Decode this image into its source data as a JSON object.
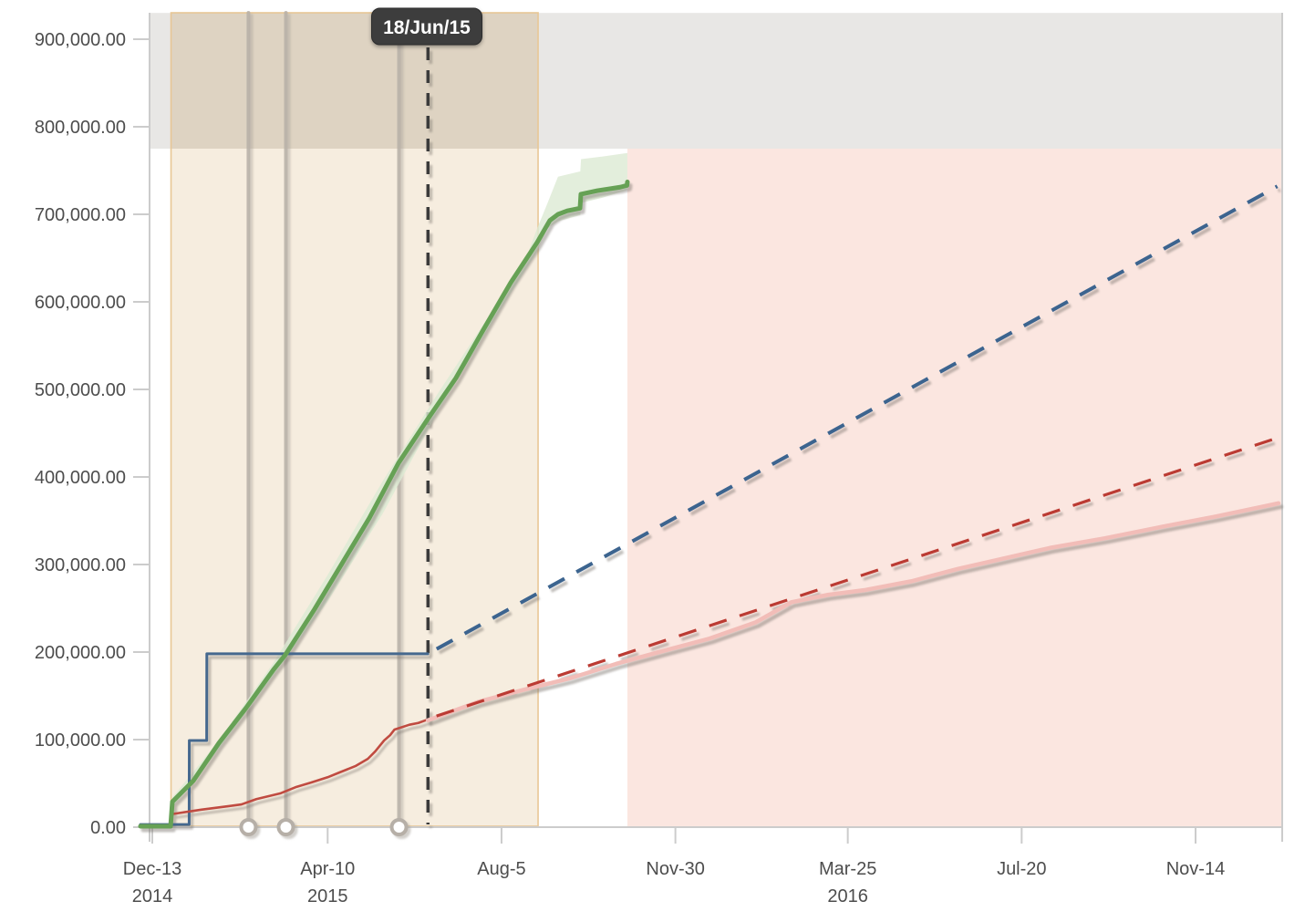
{
  "chart_data": {
    "type": "line",
    "title": "",
    "today": {
      "label": "18/Jun/15",
      "d": 185.5
    },
    "x_axis": {
      "unit": "days-since-first-tick",
      "range_d": [
        -9,
        761
      ],
      "ticks": [
        {
          "d": 0,
          "label": "Dec-13",
          "year": "2014"
        },
        {
          "d": 118,
          "label": "Apr-10",
          "year": "2015"
        },
        {
          "d": 235,
          "label": "Aug-5",
          "year": ""
        },
        {
          "d": 352,
          "label": "Nov-30",
          "year": ""
        },
        {
          "d": 468,
          "label": "Mar-25",
          "year": "2016"
        },
        {
          "d": 585,
          "label": "Jul-20",
          "year": ""
        },
        {
          "d": 702,
          "label": "Nov-14",
          "year": ""
        }
      ]
    },
    "y_axis": {
      "range": [
        0,
        930000
      ],
      "tick_step": 100000,
      "ticks": [
        {
          "v": 0,
          "label": "0.00"
        },
        {
          "v": 100000,
          "label": "100,000.00"
        },
        {
          "v": 200000,
          "label": "200,000.00"
        },
        {
          "v": 300000,
          "label": "300,000.00"
        },
        {
          "v": 400000,
          "label": "400,000.00"
        },
        {
          "v": 500000,
          "label": "500,000.00"
        },
        {
          "v": 600000,
          "label": "600,000.00"
        },
        {
          "v": 700000,
          "label": "700,000.00"
        },
        {
          "v": 800000,
          "label": "800,000.00"
        },
        {
          "v": 900000,
          "label": "900,000.00"
        }
      ]
    },
    "regions": [
      {
        "id": "scope-limit-band",
        "orient": "horizontal",
        "v_range": [
          775000,
          930000
        ],
        "color": "#e8e7e5"
      },
      {
        "id": "active-phase",
        "orient": "vertical",
        "d_range": [
          12.6,
          259.6
        ],
        "color": "#f6eddf",
        "overlap_color": "#ded3c2",
        "border_color": "#e8c795"
      },
      {
        "id": "forecast-phase",
        "orient": "vertical",
        "d_range": [
          319.7,
          760.3
        ],
        "v_range": [
          0,
          775000
        ],
        "color": "#fbe6e0"
      }
    ],
    "milestones": {
      "d": [
        64.7,
        89.9,
        166.0
      ]
    },
    "band": {
      "id": "completed-confidence-band",
      "color": "#dcead3",
      "upper": [
        [
          13.5,
          34000
        ],
        [
          44.8,
          99000
        ],
        [
          81.6,
          188000
        ],
        [
          118,
          288000
        ],
        [
          155,
          395000
        ],
        [
          192,
          495000
        ],
        [
          232,
          598000
        ],
        [
          250,
          643000
        ],
        [
          259,
          684000
        ],
        [
          266,
          713000
        ],
        [
          273,
          743000
        ],
        [
          288,
          749000
        ],
        [
          288.5,
          763000
        ],
        [
          303,
          766000
        ],
        [
          319.7,
          770000
        ]
      ],
      "lower": [
        [
          13.5,
          22000
        ],
        [
          44.8,
          89000
        ],
        [
          81.6,
          173000
        ],
        [
          118,
          258000
        ],
        [
          155,
          358000
        ],
        [
          192,
          474000
        ],
        [
          232,
          585000
        ],
        [
          259,
          658000
        ],
        [
          266,
          684000
        ],
        [
          273,
          692000
        ],
        [
          288,
          699000
        ],
        [
          288.5,
          713000
        ],
        [
          303,
          719000
        ],
        [
          319.7,
          728000
        ]
      ]
    },
    "series": [
      {
        "id": "scope",
        "label": "scope-actual",
        "color": "#45688e",
        "style": "solid",
        "width": 3,
        "points": [
          [
            -8,
            3000
          ],
          [
            24.8,
            3000
          ],
          [
            24.9,
            99000
          ],
          [
            36.6,
            99000
          ],
          [
            36.7,
            198000
          ],
          [
            185.4,
            198000
          ]
        ]
      },
      {
        "id": "value",
        "label": "value-actual",
        "color": "#c04b41",
        "style": "solid",
        "width": 2.6,
        "points": [
          [
            -8,
            1000
          ],
          [
            12.3,
            1000
          ],
          [
            13.5,
            15000
          ],
          [
            33,
            20000
          ],
          [
            51.5,
            24000
          ],
          [
            60,
            26000
          ],
          [
            70,
            32000
          ],
          [
            86,
            38500
          ],
          [
            97,
            46000
          ],
          [
            107,
            51000
          ],
          [
            118,
            57000
          ],
          [
            126,
            62500
          ],
          [
            137,
            70000
          ],
          [
            145,
            78000
          ],
          [
            150,
            86500
          ],
          [
            156,
            99000
          ],
          [
            160,
            105000
          ],
          [
            163,
            111500
          ],
          [
            173,
            117000
          ],
          [
            179,
            119000
          ],
          [
            185.4,
            123000
          ]
        ]
      },
      {
        "id": "value-projection",
        "label": "value-projection",
        "color": "#f2bdb8",
        "style": "solid",
        "width": 4.5,
        "points": [
          [
            185.4,
            122000
          ],
          [
            219,
            143000
          ],
          [
            250,
            157000
          ],
          [
            281,
            170000
          ],
          [
            312,
            186500
          ],
          [
            343,
            201000
          ],
          [
            375,
            215500
          ],
          [
            406,
            234000
          ],
          [
            430,
            257000
          ],
          [
            455,
            265500
          ],
          [
            480,
            271000
          ],
          [
            511,
            281000
          ],
          [
            542,
            295000
          ],
          [
            573,
            307000
          ],
          [
            604,
            319000
          ],
          [
            641,
            330000
          ],
          [
            679,
            343000
          ],
          [
            716,
            355000
          ],
          [
            757.8,
            370000
          ]
        ]
      },
      {
        "id": "scope-forecast",
        "label": "scope-forecast",
        "color": "#3c648f",
        "style": "dashed",
        "width": 4,
        "points": [
          [
            186.5,
            199000
          ],
          [
            757,
            732000
          ]
        ]
      },
      {
        "id": "value-forecast",
        "label": "value-forecast",
        "color": "#bb3b33",
        "style": "dashed",
        "width": 3.2,
        "points": [
          [
            186,
            124000
          ],
          [
            757.8,
            445000
          ]
        ]
      },
      {
        "id": "completed",
        "label": "completed-work",
        "color": "#66a155",
        "style": "solid",
        "width": 5,
        "points": [
          [
            -8,
            1000
          ],
          [
            12.3,
            1000
          ],
          [
            13.5,
            29000
          ],
          [
            27.6,
            53000
          ],
          [
            44.8,
            96000
          ],
          [
            63,
            136000
          ],
          [
            81.6,
            180000
          ],
          [
            89.6,
            197000
          ],
          [
            109.2,
            249000
          ],
          [
            127.6,
            301000
          ],
          [
            146,
            353000
          ],
          [
            165.7,
            416000
          ],
          [
            185.3,
            466000
          ],
          [
            204.3,
            513000
          ],
          [
            222.7,
            568000
          ],
          [
            241.2,
            622000
          ],
          [
            259,
            668000
          ],
          [
            267.5,
            693000
          ],
          [
            273,
            700000
          ],
          [
            279.2,
            704000
          ],
          [
            287.8,
            707000
          ],
          [
            288.4,
            723000
          ],
          [
            299.5,
            727000
          ],
          [
            314.8,
            731000
          ],
          [
            319.4,
            733000
          ],
          [
            319.7,
            737000
          ]
        ]
      }
    ],
    "colors": {
      "axis_line": "#cccccc",
      "axis_text": "#4d4d4d",
      "milestone": "#b6afa7",
      "today_line": "#3b3b3b",
      "tooltip_bg": "#3d3d3d",
      "tooltip_text": "#ffffff"
    }
  }
}
